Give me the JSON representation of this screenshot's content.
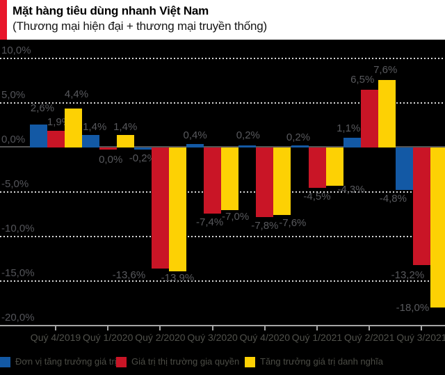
{
  "header": {
    "title": "Mặt hàng tiêu dùng nhanh Việt Nam",
    "subtitle": "(Thương mại hiện đại + thương mại truyền thống)",
    "accent_color": "#e8162b"
  },
  "chart_data": {
    "type": "bar",
    "title": "Mặt hàng tiêu dùng nhanh Việt Nam (Thương mại hiện đại + thương mại truyền thống)",
    "categories": [
      "Quý 4/2019",
      "Quý 1/2020",
      "Quý 2/2020",
      "Quý 3/2020",
      "Quý 4/2020",
      "Quý 1/2021",
      "Quý 2/2021",
      "Quý 3/2021"
    ],
    "series": [
      {
        "name": "Đơn vị tăng trưởng giá trị",
        "color": "#1359a5",
        "values": [
          2.6,
          1.4,
          -0.2,
          0.4,
          0.2,
          0.2,
          1.1,
          -4.8
        ],
        "labels": [
          "2,6%",
          "1,4%",
          "-0,2%",
          "0,4%",
          "0,2%",
          "0,2%",
          "1,1%",
          "-4,8%"
        ]
      },
      {
        "name": "Giá trị thị trường gia quyền",
        "color": "#c91526",
        "values": [
          1.9,
          0.0,
          -13.6,
          -7.4,
          -7.8,
          -4.5,
          6.5,
          -13.2
        ],
        "labels": [
          "1,9%",
          "0,0%",
          "-13,6%",
          "-7,4%",
          "-7,8%",
          "-4,5%",
          "6,5%",
          "-13,2%"
        ]
      },
      {
        "name": "Tăng trưởng giá trị danh nghĩa",
        "color": "#fdd104",
        "values": [
          4.4,
          1.4,
          -13.9,
          -7.0,
          -7.6,
          -4.3,
          7.6,
          -18.0
        ],
        "labels": [
          "4,4%",
          "1,4%",
          "-13,9%",
          "-7,0%",
          "-7,6%",
          "-4,3%",
          "7,6%",
          "-18,0%"
        ]
      }
    ],
    "ylim": [
      -20,
      10
    ],
    "ytick_step": 5,
    "ytick_labels": [
      "10,0%",
      "5,0%",
      "0,0%",
      "-5,0%",
      "-10,0%",
      "-15,0%",
      "-20,0%"
    ],
    "ytick_values": [
      10,
      5,
      0,
      -5,
      -10,
      -15,
      -20
    ],
    "grid": "horizontal dotted",
    "legend_position": "bottom",
    "background": "#000000"
  }
}
